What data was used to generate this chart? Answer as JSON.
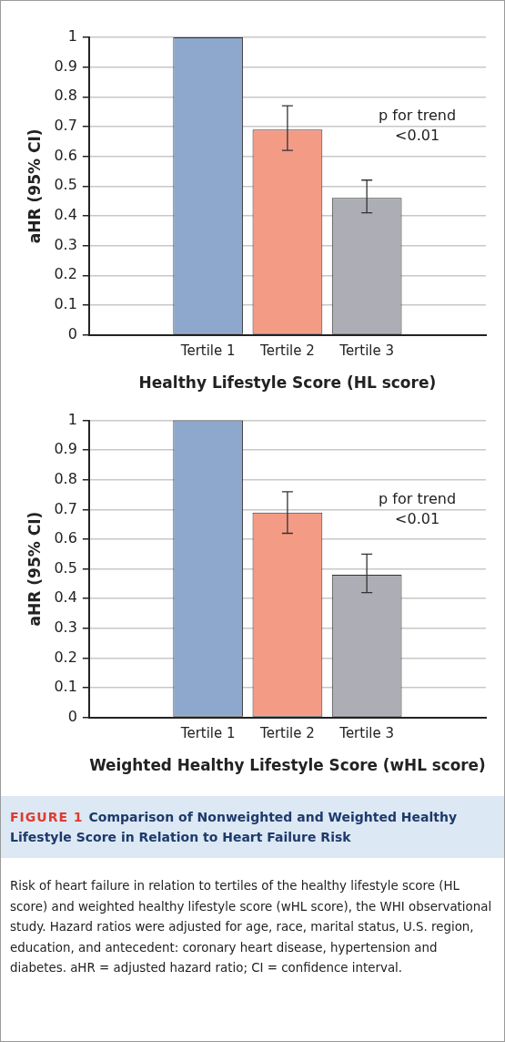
{
  "chart_data": [
    {
      "type": "bar",
      "xlabel": "Healthy Lifestyle Score (HL score)",
      "ylabel": "aHR (95% CI)",
      "categories": [
        null,
        "Tertile 1",
        "Tertile 2",
        "Tertile 3",
        null
      ],
      "values": [
        null,
        1,
        0.69,
        0.46,
        null
      ],
      "colors": [
        "#8da7cd",
        "#8da7cd",
        "#f49b85",
        "#adadb5",
        "#adadb5"
      ],
      "errors": [
        null,
        null,
        [
          0.62,
          0.77
        ],
        [
          0.41,
          0.52
        ],
        null
      ],
      "ylim": [
        0,
        1
      ],
      "yticks": [
        0,
        0.1,
        0.2,
        0.3,
        0.4,
        0.5,
        0.6,
        0.7,
        0.8,
        0.9,
        1
      ],
      "grid": "y",
      "legend": false,
      "annotations": [
        "p for trend\n<0.01"
      ]
    },
    {
      "type": "bar",
      "xlabel": "Weighted Healthy Lifestyle Score (wHL score)",
      "ylabel": "aHR (95% CI)",
      "categories": [
        null,
        "Tertile 1",
        "Tertile 2",
        "Tertile 3",
        null
      ],
      "values": [
        null,
        1,
        0.69,
        0.48,
        null
      ],
      "colors": [
        "#8da7cd",
        "#8da7cd",
        "#f49b85",
        "#adadb5",
        "#adadb5"
      ],
      "errors": [
        null,
        null,
        [
          0.62,
          0.76
        ],
        [
          0.42,
          0.55
        ],
        null
      ],
      "ylim": [
        0,
        1
      ],
      "yticks": [
        0,
        0.1,
        0.2,
        0.3,
        0.4,
        0.5,
        0.6,
        0.7,
        0.8,
        0.9,
        1
      ],
      "grid": "y",
      "legend": false,
      "annotations": [
        "p for trend\n<0.01"
      ]
    },
    {
      "type": "other",
      "title": "FIGURE 1",
      "subtitle": "Comparison of Nonweighted and Weighted Healthy Lifestyle Score in Relation to Heart Failure Risk",
      "annotations": [
        "Risk of heart failure in relation to tertiles of the healthy lifestyle score (HL score) and weighted healthy lifestyle score (wHL score), the WHI observational study. Hazard ratios were adjusted for age, race, marital status, U.S. region, education, and antecedent: coronary heart disease, hypertension and diabetes. aHR = adjusted hazard ratio; CI = confidence interval."
      ]
    }
  ]
}
